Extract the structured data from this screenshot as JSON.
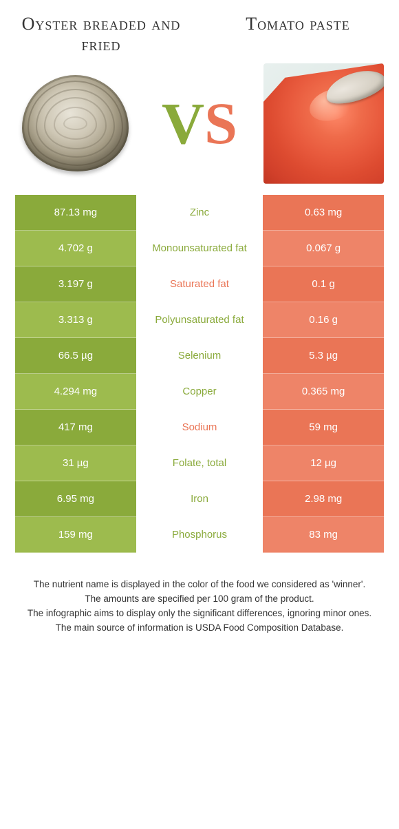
{
  "foodA": {
    "title": "Oyster breaded and fried"
  },
  "foodB": {
    "title": "Tomato paste"
  },
  "vs": {
    "v": "V",
    "s": "S"
  },
  "colors": {
    "green_even": "#8aaa3b",
    "green_odd": "#9dbb4e",
    "orange_even": "#ea7556",
    "orange_odd": "#ee8468",
    "mid_winner_green": "#8aaa3b",
    "mid_winner_orange": "#ea7556"
  },
  "rows": [
    {
      "left": "87.13 mg",
      "name": "Zinc",
      "right": "0.63 mg",
      "winner": "green"
    },
    {
      "left": "4.702 g",
      "name": "Monounsaturated fat",
      "right": "0.067 g",
      "winner": "green"
    },
    {
      "left": "3.197 g",
      "name": "Saturated fat",
      "right": "0.1 g",
      "winner": "orange"
    },
    {
      "left": "3.313 g",
      "name": "Polyunsaturated fat",
      "right": "0.16 g",
      "winner": "green"
    },
    {
      "left": "66.5 µg",
      "name": "Selenium",
      "right": "5.3 µg",
      "winner": "green"
    },
    {
      "left": "4.294 mg",
      "name": "Copper",
      "right": "0.365 mg",
      "winner": "green"
    },
    {
      "left": "417 mg",
      "name": "Sodium",
      "right": "59 mg",
      "winner": "orange"
    },
    {
      "left": "31 µg",
      "name": "Folate, total",
      "right": "12 µg",
      "winner": "green"
    },
    {
      "left": "6.95 mg",
      "name": "Iron",
      "right": "2.98 mg",
      "winner": "green"
    },
    {
      "left": "159 mg",
      "name": "Phosphorus",
      "right": "83 mg",
      "winner": "green"
    }
  ],
  "footer": {
    "line1": "The nutrient name is displayed in the color of the food we considered as 'winner'.",
    "line2": "The amounts are specified per 100 gram of the product.",
    "line3": "The infographic aims to display only the significant differences, ignoring minor ones.",
    "line4": "The main source of information is USDA Food Composition Database."
  }
}
